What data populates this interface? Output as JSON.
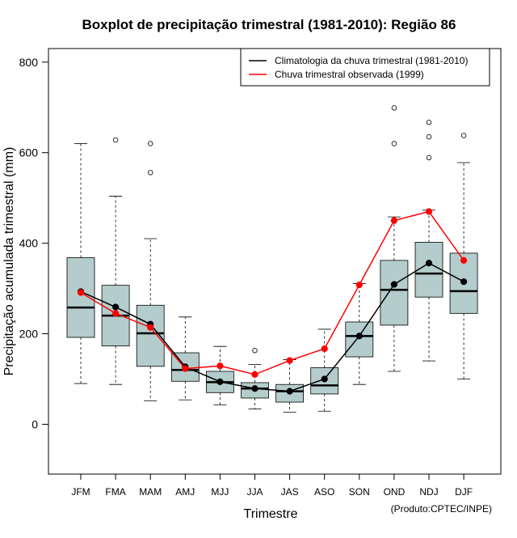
{
  "chart_data": {
    "type": "boxplot",
    "title": "Boxplot de precipitação trimestral (1981-2010): Região 86",
    "xlabel": "Trimestre",
    "ylabel": "Precipitação acumulada trimestral (mm)",
    "ylim": [
      -110,
      830
    ],
    "yticks": [
      0,
      200,
      400,
      600,
      800
    ],
    "grid": false,
    "legend_position": "top-right",
    "credit": "(Produto:CPTEC/INPE)",
    "categories": [
      "JFM",
      "FMA",
      "MAM",
      "AMJ",
      "MJJ",
      "JJA",
      "JAS",
      "ASO",
      "SON",
      "OND",
      "NDJ",
      "DJF"
    ],
    "boxes": [
      {
        "whisker_low": 90,
        "q1": 192,
        "median": 258,
        "q3": 368,
        "whisker_high": 620,
        "outliers": []
      },
      {
        "whisker_low": 88,
        "q1": 173,
        "median": 240,
        "q3": 307,
        "whisker_high": 504,
        "outliers": [
          628
        ]
      },
      {
        "whisker_low": 52,
        "q1": 128,
        "median": 201,
        "q3": 263,
        "whisker_high": 410,
        "outliers": [
          556,
          620
        ]
      },
      {
        "whisker_low": 54,
        "q1": 95,
        "median": 120,
        "q3": 158,
        "whisker_high": 237,
        "outliers": []
      },
      {
        "whisker_low": 43,
        "q1": 70,
        "median": 93,
        "q3": 117,
        "whisker_high": 172,
        "outliers": []
      },
      {
        "whisker_low": 34,
        "q1": 58,
        "median": 79,
        "q3": 92,
        "whisker_high": 132,
        "outliers": [
          163
        ]
      },
      {
        "whisker_low": 27,
        "q1": 49,
        "median": 73,
        "q3": 88,
        "whisker_high": 143,
        "outliers": []
      },
      {
        "whisker_low": 29,
        "q1": 67,
        "median": 86,
        "q3": 125,
        "whisker_high": 210,
        "outliers": []
      },
      {
        "whisker_low": 88,
        "q1": 149,
        "median": 195,
        "q3": 226,
        "whisker_high": 311,
        "outliers": []
      },
      {
        "whisker_low": 117,
        "q1": 219,
        "median": 297,
        "q3": 362,
        "whisker_high": 458,
        "outliers": [
          620,
          699
        ]
      },
      {
        "whisker_low": 140,
        "q1": 281,
        "median": 333,
        "q3": 402,
        "whisker_high": 473,
        "outliers": [
          589,
          635,
          667
        ]
      },
      {
        "whisker_low": 100,
        "q1": 245,
        "median": 294,
        "q3": 378,
        "whisker_high": 578,
        "outliers": [
          638
        ]
      }
    ],
    "series": [
      {
        "name": "Climatologia da chuva trimestral (1981-2010)",
        "color": "#000000",
        "values": [
          293,
          259,
          221,
          127,
          94,
          79,
          73,
          100,
          195,
          309,
          356,
          315
        ]
      },
      {
        "name": "Chuva trimestral observada (1999)",
        "color": "#ff0000",
        "values": [
          291,
          245,
          214,
          123,
          129,
          110,
          141,
          167,
          308,
          450,
          470,
          362
        ]
      }
    ],
    "box_fill": "#b4cccc"
  }
}
